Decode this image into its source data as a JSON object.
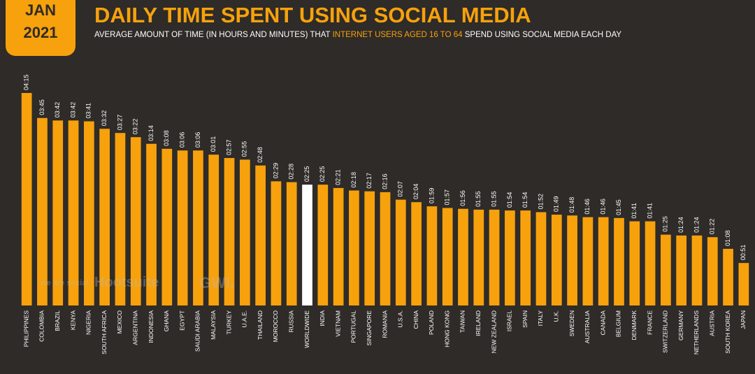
{
  "chart_data": {
    "type": "bar",
    "badge": [
      "JAN",
      "2021"
    ],
    "title": "DAILY TIME SPENT USING SOCIAL MEDIA",
    "subtitle_parts": [
      "AVERAGE AMOUNT OF TIME (IN HOURS AND MINUTES) THAT ",
      "INTERNET USERS AGED 16 TO 64",
      " SPEND USING SOCIAL MEDIA EACH DAY"
    ],
    "brands": [
      "we are social",
      "Hootsuite",
      "GWI."
    ],
    "categories": [
      "PHILIPPINES",
      "COLOMBIA",
      "BRAZIL",
      "KENYA",
      "NIGERIA",
      "SOUTH AFRICA",
      "MEXICO",
      "ARGENTINA",
      "INDONESIA",
      "GHANA",
      "EGYPT",
      "SAUDI ARABIA",
      "MALAYSIA",
      "TURKEY",
      "U.A.E.",
      "THAILAND",
      "MOROCCO",
      "RUSSIA",
      "WORLDWIDE",
      "INDIA",
      "VIETNAM",
      "PORTUGAL",
      "SINGAPORE",
      "ROMANIA",
      "U.S.A.",
      "CHINA",
      "POLAND",
      "HONG KONG",
      "TAIWAN",
      "IRELAND",
      "NEW ZEALAND",
      "ISRAEL",
      "SPAIN",
      "ITALY",
      "U.K.",
      "SWEDEN",
      "AUSTRALIA",
      "CANADA",
      "BELGIUM",
      "DENMARK",
      "FRANCE",
      "SWITZERLAND",
      "GERMANY",
      "NETHERLANDS",
      "AUSTRIA",
      "SOUTH KOREA",
      "JAPAN"
    ],
    "values": [
      255,
      225,
      222,
      222,
      221,
      212,
      207,
      202,
      194,
      188,
      186,
      186,
      181,
      177,
      175,
      168,
      149,
      148,
      145,
      145,
      141,
      138,
      137,
      136,
      127,
      124,
      119,
      117,
      116,
      115,
      115,
      114,
      114,
      112,
      109,
      108,
      106,
      106,
      105,
      101,
      101,
      85,
      84,
      84,
      82,
      68,
      51
    ],
    "value_labels": [
      "04:15",
      "03:45",
      "03:42",
      "03:42",
      "03:41",
      "03:32",
      "03:27",
      "03:22",
      "03:14",
      "03:08",
      "03:06",
      "03:06",
      "03:01",
      "02:57",
      "02:55",
      "02:48",
      "02:29",
      "02:28",
      "02:25",
      "02:25",
      "02:21",
      "02:18",
      "02:17",
      "02:16",
      "02:07",
      "02:04",
      "01:59",
      "01:57",
      "01:56",
      "01:55",
      "01:55",
      "01:54",
      "01:54",
      "01:52",
      "01:49",
      "01:48",
      "01:46",
      "01:46",
      "01:45",
      "01:41",
      "01:41",
      "01:25",
      "01:24",
      "01:24",
      "01:22",
      "01:08",
      "00:51"
    ],
    "colors": [
      "#f7a10c",
      "#f7a10c",
      "#f7a10c",
      "#f7a10c",
      "#f7a10c",
      "#f7a10c",
      "#f7a10c",
      "#f7a10c",
      "#f7a10c",
      "#f7a10c",
      "#f7a10c",
      "#f7a10c",
      "#f7a10c",
      "#f7a10c",
      "#f7a10c",
      "#f7a10c",
      "#f7a10c",
      "#f7a10c",
      "#ffffff",
      "#f7a10c",
      "#f7a10c",
      "#f7a10c",
      "#f7a10c",
      "#f7a10c",
      "#f7a10c",
      "#f7a10c",
      "#f7a10c",
      "#f7a10c",
      "#f7a10c",
      "#f7a10c",
      "#f7a10c",
      "#f7a10c",
      "#f7a10c",
      "#f7a10c",
      "#f7a10c",
      "#f7a10c",
      "#f7a10c",
      "#f7a10c",
      "#f7a10c",
      "#f7a10c",
      "#f7a10c",
      "#f7a10c",
      "#f7a10c",
      "#f7a10c",
      "#f7a10c",
      "#f7a10c",
      "#f7a10c"
    ]
  }
}
